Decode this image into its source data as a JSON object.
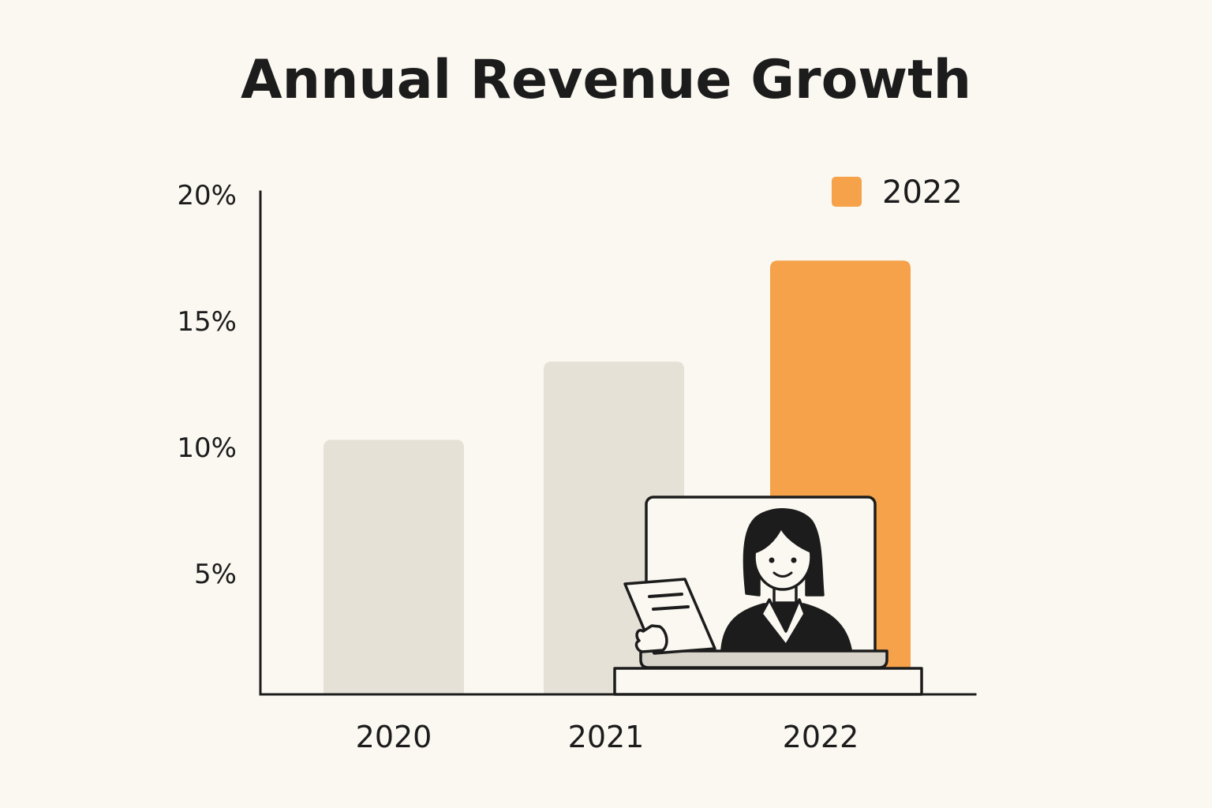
{
  "colors": {
    "background": "#fbf8f1",
    "bar_muted": "#e6e1d7",
    "bar_highlight": "#f5a24a",
    "axis": "#1c1c1c",
    "ink": "#1c1c1c"
  },
  "illustration": {
    "icon": "person-presenting-on-laptop-icon"
  },
  "chart_data": {
    "type": "bar",
    "title": "Annual Revenue Growth",
    "xlabel": "",
    "ylabel": "",
    "categories": [
      "2020",
      "2021",
      "2022"
    ],
    "values": [
      10.3,
      13.4,
      17.4
    ],
    "highlight": "2022",
    "yticks": [
      "5%",
      "10%",
      "15%",
      "20%"
    ],
    "ytick_values": [
      5,
      10,
      15,
      20
    ],
    "ylim": [
      0,
      20
    ],
    "grid": false,
    "legend": {
      "position": "top-right",
      "entries": [
        "2022"
      ]
    }
  }
}
